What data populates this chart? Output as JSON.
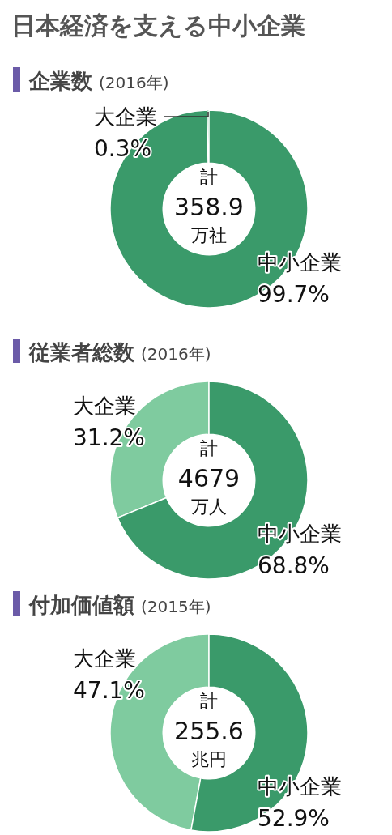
{
  "chart_data": [
    {
      "type": "other",
      "title": "日本経済を支える中小企業"
    },
    {
      "type": "donut",
      "title": "企業数",
      "subtitle": "(2016年)",
      "categories": [
        "大企業",
        "中小企業"
      ],
      "values": [
        0.3,
        99.7
      ],
      "value_labels": [
        "0.3%",
        "99.7%"
      ],
      "colors": [
        "#7fcb9f",
        "#3a9a6a"
      ],
      "annotations": [
        "計",
        "358.9",
        "万社"
      ]
    },
    {
      "type": "donut",
      "title": "従業者総数",
      "subtitle": "(2016年)",
      "categories": [
        "大企業",
        "中小企業"
      ],
      "values": [
        31.2,
        68.8
      ],
      "value_labels": [
        "31.2%",
        "68.8%"
      ],
      "colors": [
        "#7fcb9f",
        "#3a9a6a"
      ],
      "annotations": [
        "計",
        "4679",
        "万人"
      ]
    },
    {
      "type": "donut",
      "title": "付加価値額",
      "subtitle": "(2015年)",
      "categories": [
        "大企業",
        "中小企業"
      ],
      "values": [
        47.1,
        52.9
      ],
      "value_labels": [
        "47.1%",
        "52.9%"
      ],
      "colors": [
        "#7fcb9f",
        "#3a9a6a"
      ],
      "annotations": [
        "計",
        "255.6",
        "兆円"
      ]
    }
  ]
}
